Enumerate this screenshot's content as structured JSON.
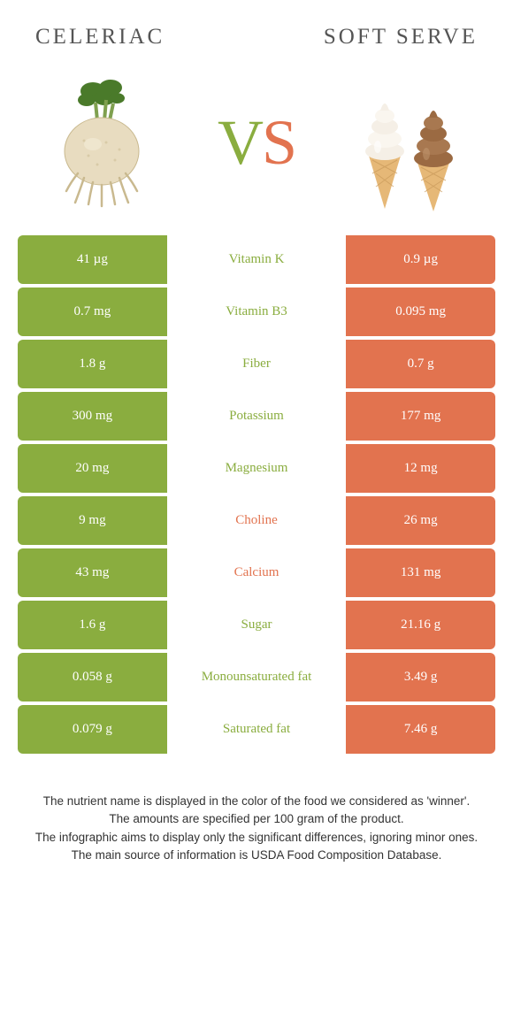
{
  "colors": {
    "green": "#8aad3f",
    "orange": "#e2734f",
    "title": "#555555",
    "footnote": "#333333"
  },
  "titles": {
    "left": "CELERIAC",
    "right": "SOFT SERVE"
  },
  "vs": {
    "v": "V",
    "s": "S"
  },
  "rows": [
    {
      "left": "41 µg",
      "label": "Vitamin K",
      "right": "0.9 µg",
      "winner": "left"
    },
    {
      "left": "0.7 mg",
      "label": "Vitamin B3",
      "right": "0.095 mg",
      "winner": "left"
    },
    {
      "left": "1.8 g",
      "label": "Fiber",
      "right": "0.7 g",
      "winner": "left"
    },
    {
      "left": "300 mg",
      "label": "Potassium",
      "right": "177 mg",
      "winner": "left"
    },
    {
      "left": "20 mg",
      "label": "Magnesium",
      "right": "12 mg",
      "winner": "left"
    },
    {
      "left": "9 mg",
      "label": "Choline",
      "right": "26 mg",
      "winner": "right"
    },
    {
      "left": "43 mg",
      "label": "Calcium",
      "right": "131 mg",
      "winner": "right"
    },
    {
      "left": "1.6 g",
      "label": "Sugar",
      "right": "21.16 g",
      "winner": "left"
    },
    {
      "left": "0.058 g",
      "label": "Monounsaturated fat",
      "right": "3.49 g",
      "winner": "left"
    },
    {
      "left": "0.079 g",
      "label": "Saturated fat",
      "right": "7.46 g",
      "winner": "left"
    }
  ],
  "footnotes": [
    "The nutrient name is displayed in the color of the food we considered as 'winner'.",
    "The amounts are specified per 100 gram of the product.",
    "The infographic aims to display only the significant differences, ignoring minor ones.",
    "The main source of information is USDA Food Composition Database."
  ]
}
